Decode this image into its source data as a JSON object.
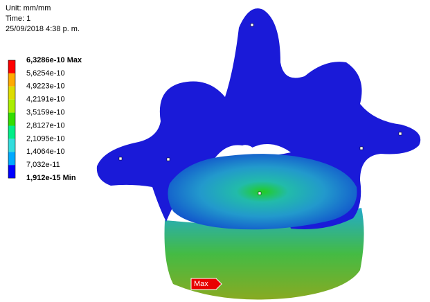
{
  "header": {
    "unit": "Unit: mm/mm",
    "time": "Time: 1",
    "date": "25/09/2018 4:38 p. m."
  },
  "legend": {
    "labels": [
      "6,3286e-10 Max",
      "5,6254e-10",
      "4,9223e-10",
      "4,2191e-10",
      "3,5159e-10",
      "2,8127e-10",
      "2,1095e-10",
      "1,4064e-10",
      "7,032e-11",
      "1,912e-15 Min"
    ],
    "band_colors": [
      "#ff0000",
      "#ffaa00",
      "#dddd00",
      "#aaee00",
      "#33dd00",
      "#00ee88",
      "#33dddd",
      "#00aaff",
      "#0000ff"
    ]
  },
  "probe": {
    "label": "Max"
  }
}
